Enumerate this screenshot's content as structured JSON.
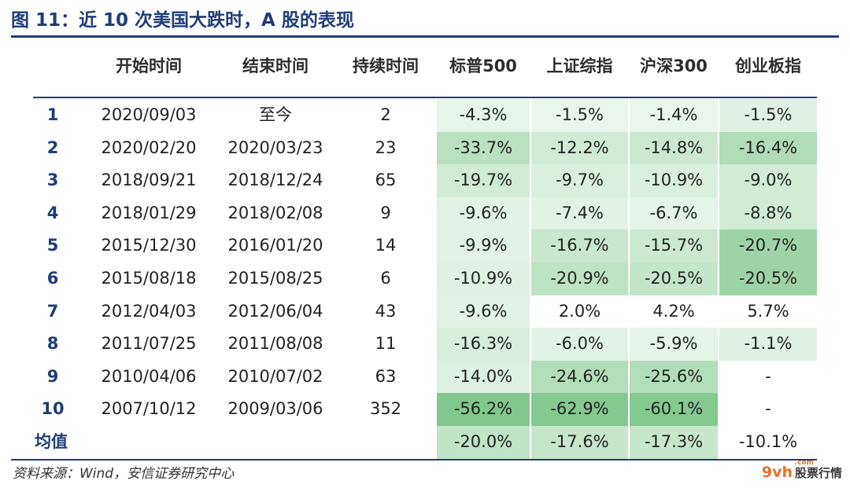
{
  "title": "图 11：近 10 次美国大跌时，A 股的表现",
  "headers": [
    "",
    "开始时间",
    "结束时间",
    "持续时间",
    "标普500",
    "上证综指",
    "沪深300",
    "创业板指"
  ],
  "rows": [
    {
      "idx": "1",
      "start": "2020/09/03",
      "end": "至今",
      "duration": "2",
      "vals": [
        "-4.3%",
        "-1.5%",
        "-1.4%",
        "-1.5%"
      ],
      "shade": [
        0.04,
        0.02,
        0.02,
        0.08
      ]
    },
    {
      "idx": "2",
      "start": "2020/02/20",
      "end": "2020/03/23",
      "duration": "23",
      "vals": [
        "-33.7%",
        "-12.2%",
        "-14.8%",
        "-16.4%"
      ],
      "shade": [
        0.35,
        0.18,
        0.22,
        0.42
      ]
    },
    {
      "idx": "3",
      "start": "2018/09/21",
      "end": "2018/12/24",
      "duration": "65",
      "vals": [
        "-19.7%",
        "-9.7%",
        "-10.9%",
        "-9.0%"
      ],
      "shade": [
        0.18,
        0.12,
        0.12,
        0.18
      ]
    },
    {
      "idx": "4",
      "start": "2018/01/29",
      "end": "2018/02/08",
      "duration": "9",
      "vals": [
        "-9.6%",
        "-7.4%",
        "-6.7%",
        "-8.8%"
      ],
      "shade": [
        0.06,
        0.07,
        0.05,
        0.18
      ]
    },
    {
      "idx": "5",
      "start": "2015/12/30",
      "end": "2016/01/20",
      "duration": "14",
      "vals": [
        "-9.9%",
        "-16.7%",
        "-15.7%",
        "-20.7%"
      ],
      "shade": [
        0.06,
        0.25,
        0.22,
        0.55
      ]
    },
    {
      "idx": "6",
      "start": "2015/08/18",
      "end": "2015/08/25",
      "duration": "6",
      "vals": [
        "-10.9%",
        "-20.9%",
        "-20.5%",
        "-20.5%"
      ],
      "shade": [
        0.08,
        0.32,
        0.28,
        0.55
      ]
    },
    {
      "idx": "7",
      "start": "2012/04/03",
      "end": "2012/06/04",
      "duration": "43",
      "vals": [
        "-9.6%",
        "2.0%",
        "4.2%",
        "5.7%"
      ],
      "shade": [
        0.06,
        0.0,
        0.0,
        0.0
      ]
    },
    {
      "idx": "8",
      "start": "2011/07/25",
      "end": "2011/08/08",
      "duration": "11",
      "vals": [
        "-16.3%",
        "-6.0%",
        "-5.9%",
        "-1.1%"
      ],
      "shade": [
        0.14,
        0.06,
        0.05,
        0.08
      ]
    },
    {
      "idx": "9",
      "start": "2010/04/06",
      "end": "2010/07/02",
      "duration": "63",
      "vals": [
        "-14.0%",
        "-24.6%",
        "-25.6%",
        "-"
      ],
      "shade": [
        0.1,
        0.4,
        0.4,
        0.0
      ]
    },
    {
      "idx": "10",
      "start": "2007/10/12",
      "end": "2009/03/06",
      "duration": "352",
      "vals": [
        "-56.2%",
        "-62.9%",
        "-60.1%",
        "-"
      ],
      "shade": [
        0.75,
        0.72,
        0.72,
        0.0
      ]
    }
  ],
  "average": {
    "label": "均值",
    "vals": [
      "-20.0%",
      "-17.6%",
      "-17.3%",
      "-10.1%"
    ],
    "shade": [
      0.3,
      0.26,
      0.26,
      0.0
    ]
  },
  "source": "资料来源：Wind，安信证券研究中心",
  "watermark": {
    "brand": "9vh",
    "text": "股票行情",
    "small": ".com"
  },
  "colors": {
    "accent": "#1f3d7a",
    "green": "#5cb86c"
  }
}
